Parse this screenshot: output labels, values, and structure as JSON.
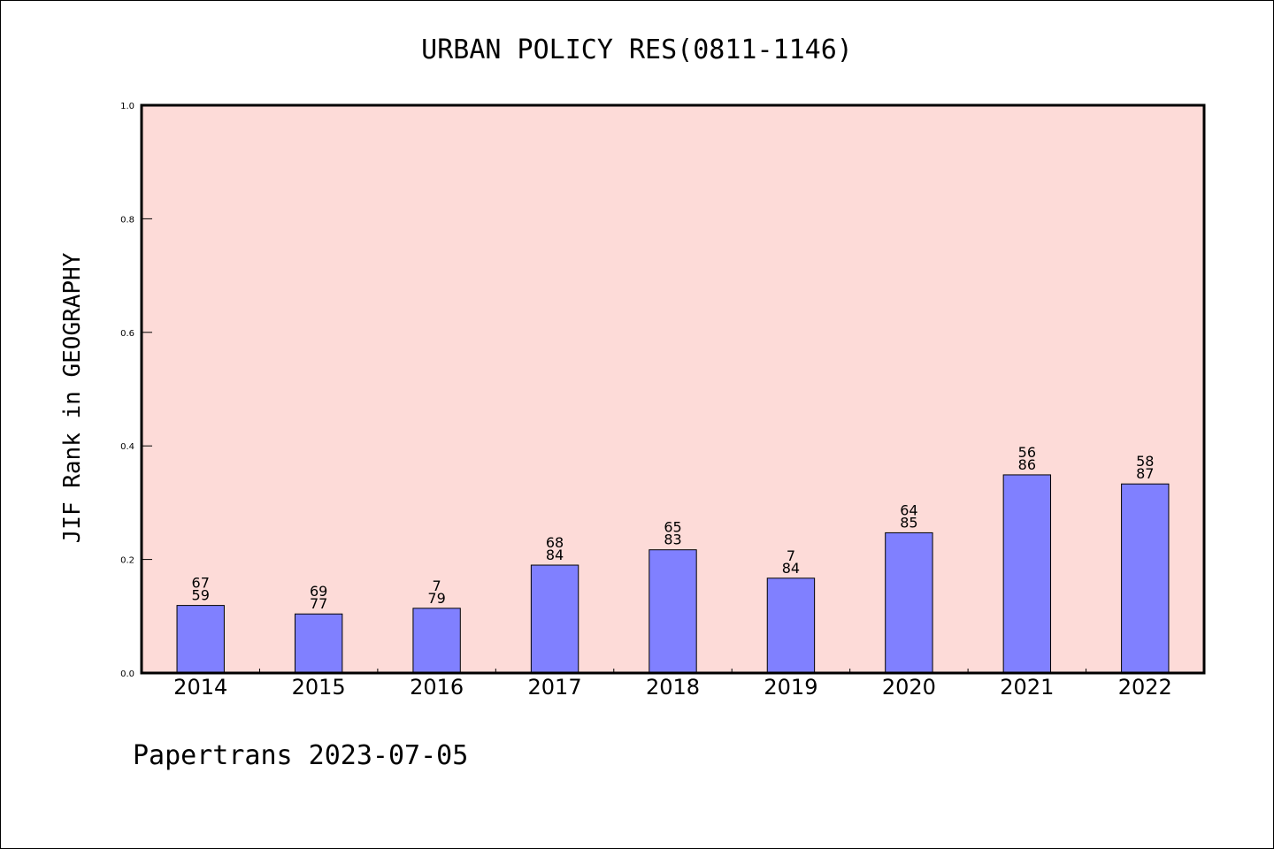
{
  "chart_data": {
    "type": "bar",
    "title": "URBAN POLICY RES(0811-1146)",
    "ylabel": "JIF Rank in GEOGRAPHY",
    "xlabel": "",
    "ylim": [
      0,
      1.0
    ],
    "yticks": [
      "0.0",
      "0.2",
      "0.4",
      "0.6",
      "0.8",
      "1.0"
    ],
    "categories": [
      "2014",
      "2015",
      "2016",
      "2017",
      "2018",
      "2019",
      "2020",
      "2021",
      "2022"
    ],
    "values": [
      0.119,
      0.104,
      0.114,
      0.19,
      0.217,
      0.167,
      0.247,
      0.349,
      0.333
    ],
    "rank_labels": [
      [
        "67",
        "59"
      ],
      [
        "69",
        "77"
      ],
      [
        "7",
        "79"
      ],
      [
        "68",
        "84"
      ],
      [
        "65",
        "83"
      ],
      [
        "7",
        "84"
      ],
      [
        "64",
        "85"
      ],
      [
        "56",
        "86"
      ],
      [
        "58",
        "87"
      ]
    ],
    "grid": false,
    "colors": {
      "plot_background": "#fddbd8",
      "bar_fill": "#8080ff",
      "bar_stroke": "#000000"
    }
  },
  "footer": {
    "text": "Papertrans 2023-07-05"
  }
}
